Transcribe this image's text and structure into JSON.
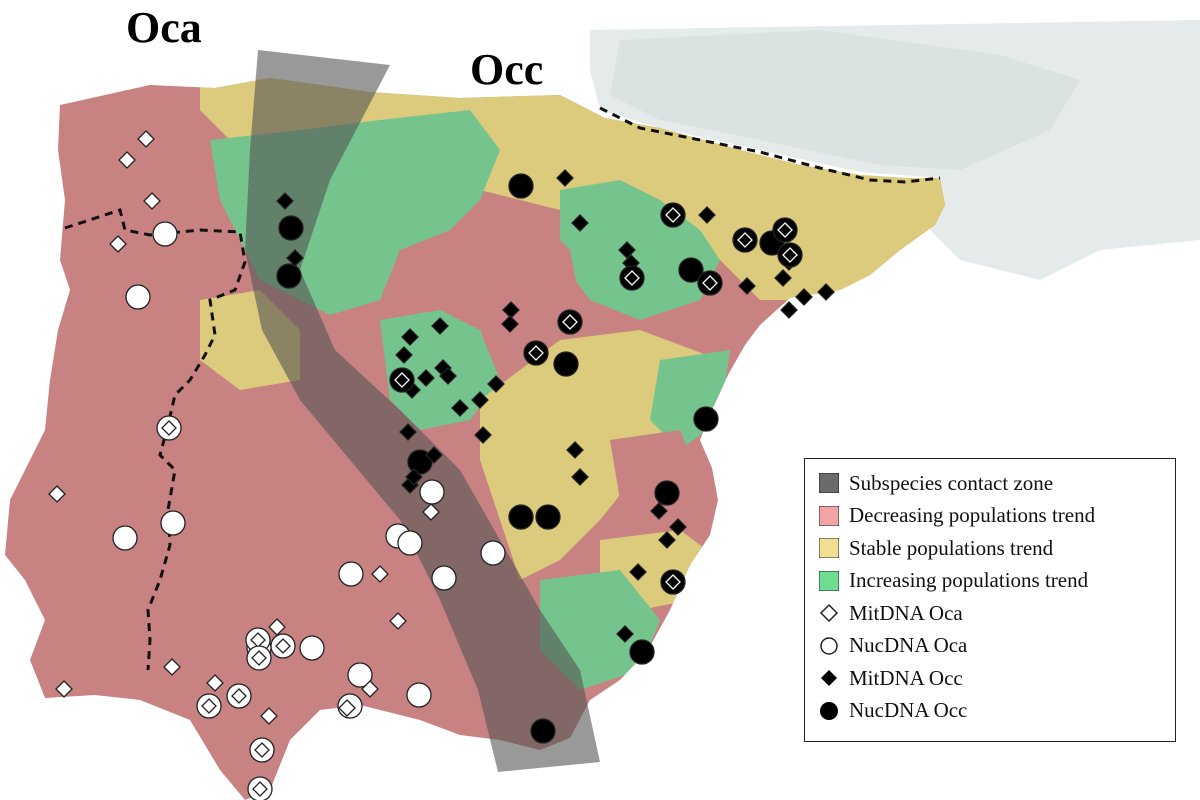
{
  "labels": {
    "oca": "Oca",
    "occ": "Occ"
  },
  "legend": [
    {
      "key": "contact",
      "label": "Subspecies contact zone",
      "color": "#6b6b6b"
    },
    {
      "key": "decreasing",
      "label": "Decreasing populations trend",
      "color": "#f2a3a6"
    },
    {
      "key": "stable",
      "label": "Stable populations trend",
      "color": "#f0df93"
    },
    {
      "key": "increasing",
      "label": "Increasing populations trend",
      "color": "#6fdc92"
    },
    {
      "key": "mit-oca",
      "label": "MitDNA Oca"
    },
    {
      "key": "nuc-oca",
      "label": "NucDNA Oca"
    },
    {
      "key": "mit-occ",
      "label": "MitDNA Occ"
    },
    {
      "key": "nuc-occ",
      "label": "NucDNA Occ"
    }
  ],
  "colors": {
    "decreasing_fill": "#c98282",
    "stable_fill": "#dccb7c",
    "increasing_fill": "#76c48d",
    "contact_zone": "#555555",
    "background_land": "#e6eceb"
  }
}
